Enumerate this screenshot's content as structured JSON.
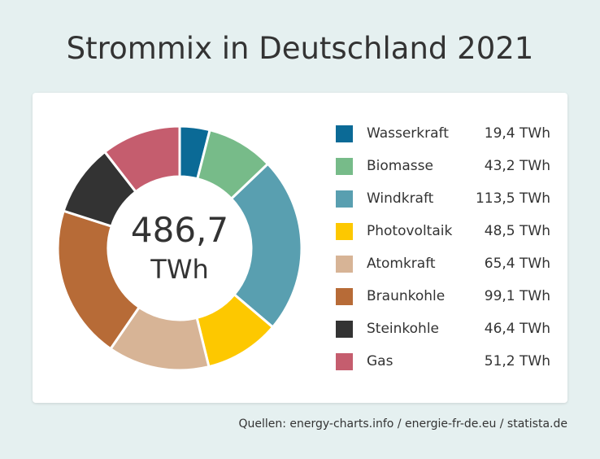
{
  "title": "Strommix in Deutschland 2021",
  "total": {
    "value": "486,7",
    "unit": "TWh"
  },
  "source": "Quellen: energy-charts.info / energie-fr-de.eu / statista.de",
  "chart_data": {
    "type": "pie",
    "variant": "donut",
    "title": "Strommix in Deutschland 2021",
    "unit": "TWh",
    "center_label": "486,7 TWh",
    "legend_placement": "right",
    "slices": [
      {
        "label": "Wasserkraft",
        "value": 19.4,
        "value_text": "19,4 TWh",
        "color": "#0b6a96"
      },
      {
        "label": "Biomasse",
        "value": 43.2,
        "value_text": "43,2 TWh",
        "color": "#77bb89"
      },
      {
        "label": "Windkraft",
        "value": 113.5,
        "value_text": "113,5 TWh",
        "color": "#599fb0"
      },
      {
        "label": "Photovoltaik",
        "value": 48.5,
        "value_text": "48,5 TWh",
        "color": "#fdc800"
      },
      {
        "label": "Atomkraft",
        "value": 65.4,
        "value_text": "65,4 TWh",
        "color": "#d7b496"
      },
      {
        "label": "Braunkohle",
        "value": 99.1,
        "value_text": "99,1 TWh",
        "color": "#b76b37"
      },
      {
        "label": "Steinkohle",
        "value": 46.4,
        "value_text": "46,4 TWh",
        "color": "#333333"
      },
      {
        "label": "Gas",
        "value": 51.2,
        "value_text": "51,2 TWh",
        "color": "#c55d6e"
      }
    ]
  }
}
